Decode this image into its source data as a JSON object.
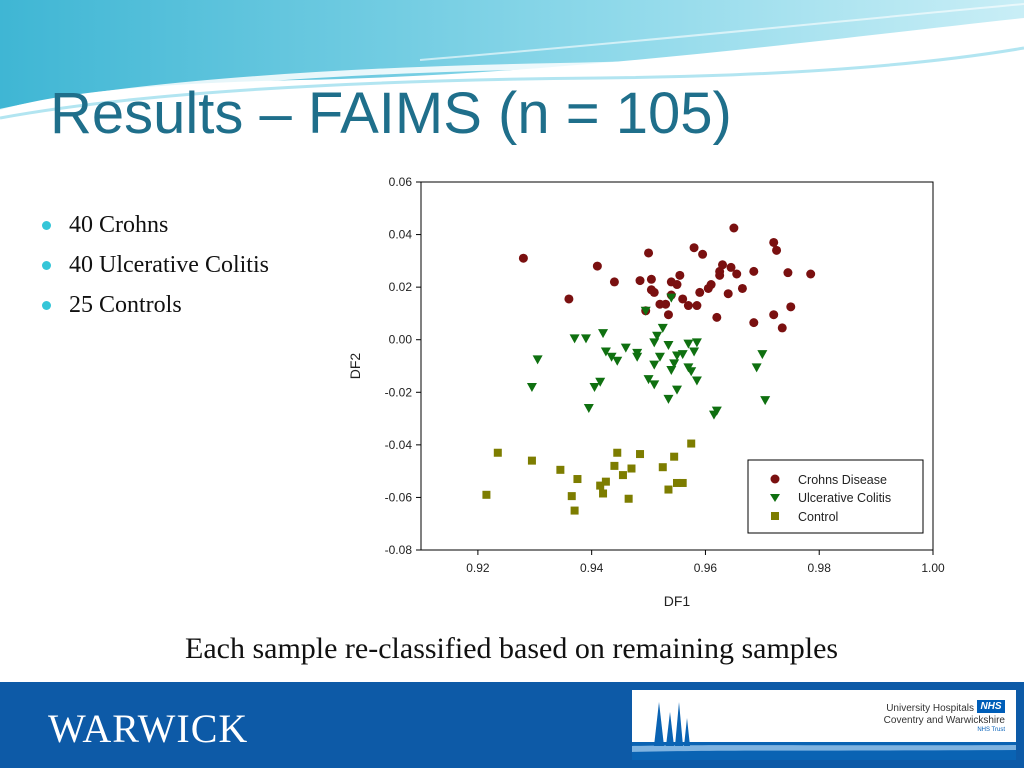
{
  "slide": {
    "title": "Results – FAIMS (n = 105)",
    "bullets": [
      "40 Crohns",
      "40 Ulcerative Colitis",
      "25 Controls"
    ],
    "caption": "Each sample re-classified based on remaining samples"
  },
  "footer": {
    "logo_text": "WARWICK",
    "nhs_line1": "University Hospitals",
    "nhs_badge": "NHS",
    "nhs_line2": "Coventry and Warwickshire",
    "nhs_line3": "NHS Trust"
  },
  "colors": {
    "title": "#1f6f8b",
    "bullet": "#35c6d8",
    "footer": "#0d5aa7",
    "crohns": "#7a1010",
    "uc": "#0f7010",
    "control": "#7d7d00"
  },
  "chart_data": {
    "type": "scatter",
    "title": "",
    "xlabel": "DF1",
    "ylabel": "DF2",
    "xlim": [
      0.91,
      1.0
    ],
    "ylim": [
      -0.08,
      0.06
    ],
    "xticks": [
      "0.92",
      "0.94",
      "0.96",
      "0.98",
      "1.00"
    ],
    "yticks": [
      "0.06",
      "0.04",
      "0.02",
      "0.00",
      "-0.02",
      "-0.04",
      "-0.06",
      "-0.08"
    ],
    "grid": false,
    "legend_position": "lower-right",
    "series": [
      {
        "name": "Crohns Disease",
        "marker": "circle",
        "color": "#7a1010",
        "x": [
          0.928,
          0.936,
          0.941,
          0.944,
          0.9485,
          0.9495,
          0.95,
          0.9505,
          0.9505,
          0.951,
          0.952,
          0.953,
          0.9535,
          0.954,
          0.954,
          0.955,
          0.9555,
          0.956,
          0.957,
          0.958,
          0.9585,
          0.959,
          0.9595,
          0.9605,
          0.961,
          0.962,
          0.9625,
          0.9625,
          0.963,
          0.964,
          0.9645,
          0.965,
          0.9655,
          0.9665,
          0.9685,
          0.9685,
          0.972,
          0.972,
          0.9725,
          0.9735,
          0.9745,
          0.975,
          0.9785
        ],
        "y": [
          0.031,
          0.0155,
          0.028,
          0.022,
          0.0225,
          0.011,
          0.033,
          0.023,
          0.019,
          0.018,
          0.0135,
          0.0135,
          0.0095,
          0.022,
          0.017,
          0.021,
          0.0245,
          0.0155,
          0.013,
          0.035,
          0.013,
          0.018,
          0.0325,
          0.0195,
          0.021,
          0.0085,
          0.026,
          0.0245,
          0.0285,
          0.0175,
          0.0275,
          0.0425,
          0.025,
          0.0195,
          0.026,
          0.0065,
          0.0095,
          0.037,
          0.034,
          0.0045,
          0.0255,
          0.0125,
          0.025
        ]
      },
      {
        "name": "Ulcerative Colitis",
        "marker": "triangle-down",
        "color": "#0f7010",
        "x": [
          0.9295,
          0.9305,
          0.937,
          0.939,
          0.9395,
          0.9405,
          0.9415,
          0.942,
          0.9425,
          0.9435,
          0.9445,
          0.946,
          0.948,
          0.948,
          0.9495,
          0.95,
          0.951,
          0.951,
          0.951,
          0.9515,
          0.952,
          0.9525,
          0.9535,
          0.9535,
          0.954,
          0.954,
          0.9545,
          0.955,
          0.955,
          0.956,
          0.957,
          0.957,
          0.9575,
          0.958,
          0.9585,
          0.9585,
          0.9615,
          0.962,
          0.969,
          0.97,
          0.9705
        ],
        "y": [
          -0.018,
          -0.0075,
          0.0005,
          0.0005,
          -0.026,
          -0.018,
          -0.016,
          0.0025,
          -0.0045,
          -0.0065,
          -0.008,
          -0.003,
          -0.005,
          -0.0065,
          0.011,
          -0.015,
          -0.0095,
          -0.017,
          -0.001,
          0.0015,
          -0.0065,
          0.0045,
          -0.002,
          -0.0225,
          -0.0115,
          0.016,
          -0.009,
          -0.019,
          -0.006,
          -0.0055,
          -0.0105,
          -0.0015,
          -0.012,
          -0.0045,
          -0.001,
          -0.0155,
          -0.0285,
          -0.027,
          -0.0105,
          -0.0055,
          -0.023
        ]
      },
      {
        "name": "Control",
        "marker": "square",
        "color": "#7d7d00",
        "x": [
          0.9215,
          0.9235,
          0.9295,
          0.9345,
          0.9365,
          0.937,
          0.9375,
          0.9415,
          0.942,
          0.9425,
          0.944,
          0.9445,
          0.9455,
          0.9465,
          0.947,
          0.9485,
          0.9525,
          0.9535,
          0.9545,
          0.955,
          0.956,
          0.9575
        ],
        "y": [
          -0.059,
          -0.043,
          -0.046,
          -0.0495,
          -0.0595,
          -0.065,
          -0.053,
          -0.0555,
          -0.0585,
          -0.054,
          -0.048,
          -0.043,
          -0.0515,
          -0.0605,
          -0.049,
          -0.0435,
          -0.0485,
          -0.057,
          -0.0445,
          -0.0545,
          -0.0545,
          -0.0395
        ]
      }
    ]
  }
}
